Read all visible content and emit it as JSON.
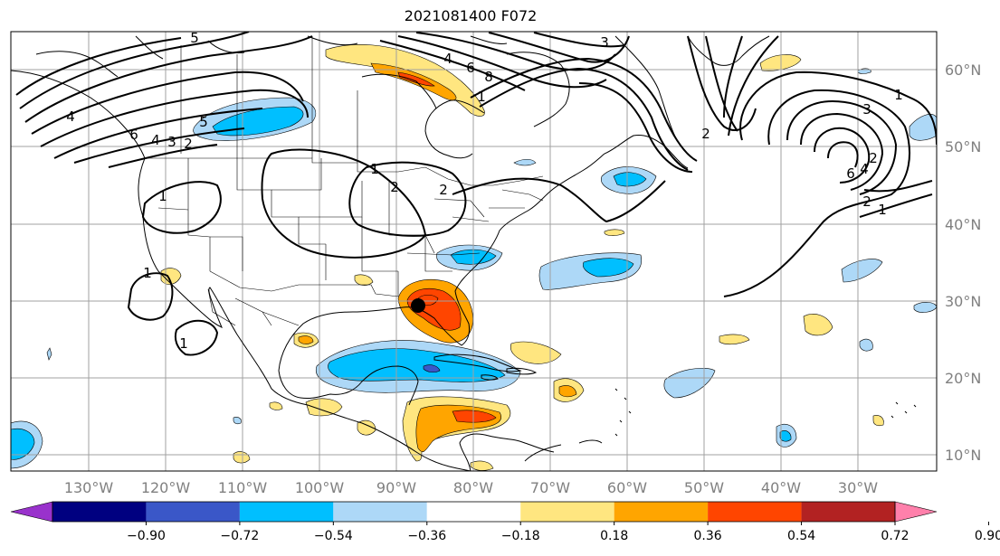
{
  "title": "2021081400 F072",
  "lon_labels": [
    "130°W",
    "120°W",
    "110°W",
    "100°W",
    "90°W",
    "80°W",
    "70°W",
    "60°W",
    "50°W",
    "40°W",
    "30°W"
  ],
  "lat_labels": [
    "60°N",
    "50°N",
    "40°N",
    "30°N",
    "20°N",
    "10°N"
  ],
  "colorbar": {
    "colors": [
      "#9932cc",
      "#000080",
      "#3a57c8",
      "#00bfff",
      "#add8f7",
      "#ffffff",
      "#ffe680",
      "#ffa500",
      "#ff4500",
      "#b22222",
      "#ff80ab"
    ],
    "tick_labels": [
      "−0.90",
      "−0.72",
      "−0.54",
      "−0.36",
      "−0.18",
      "0.18",
      "0.36",
      "0.54",
      "0.72",
      "0.90"
    ]
  },
  "contour_labels": [
    "5",
    "3",
    "4",
    "6",
    "8",
    "1",
    "5",
    "4",
    "6",
    "4",
    "3",
    "2",
    "1",
    "2",
    "2",
    "1",
    "1",
    "1",
    "1",
    "3",
    "2",
    "6",
    "4",
    "2",
    "2",
    "1"
  ],
  "storm_marker": "black-dot"
}
